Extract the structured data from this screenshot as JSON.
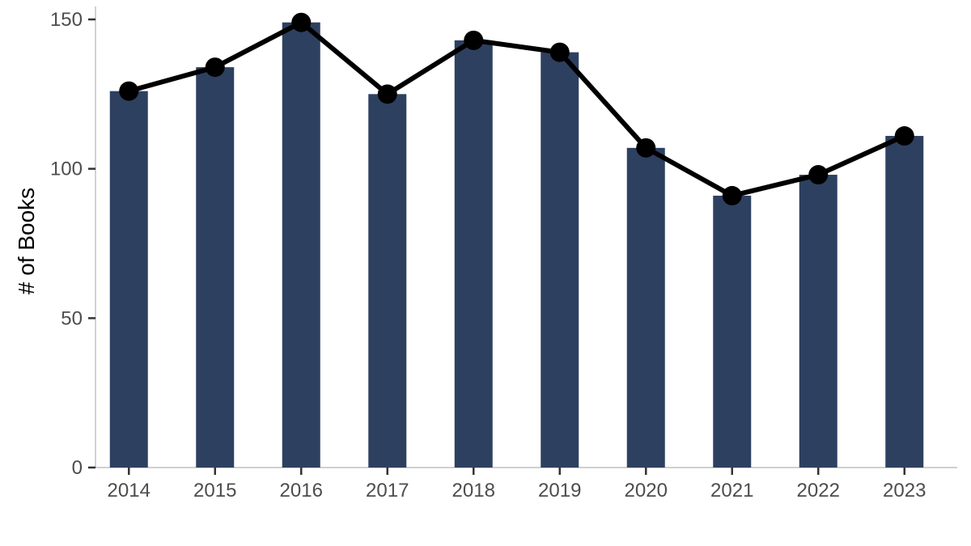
{
  "chart_data": {
    "type": "bar",
    "categories": [
      "2014",
      "2015",
      "2016",
      "2017",
      "2018",
      "2019",
      "2020",
      "2021",
      "2022",
      "2023"
    ],
    "series": [
      {
        "type": "bar",
        "values": [
          126,
          134,
          149,
          125,
          143,
          139,
          107,
          91,
          98,
          111
        ]
      },
      {
        "type": "line",
        "values": [
          126,
          134,
          149,
          125,
          143,
          139,
          107,
          91,
          98,
          111
        ]
      }
    ],
    "title": "",
    "xlabel": "",
    "ylabel": "# of Books",
    "ylim": [
      0,
      150
    ],
    "yticks": [
      0,
      50,
      100,
      150
    ],
    "grid": false,
    "legend": "none",
    "colors": {
      "bar": "#2d4060",
      "line": "#000000",
      "marker": "#000000"
    }
  }
}
